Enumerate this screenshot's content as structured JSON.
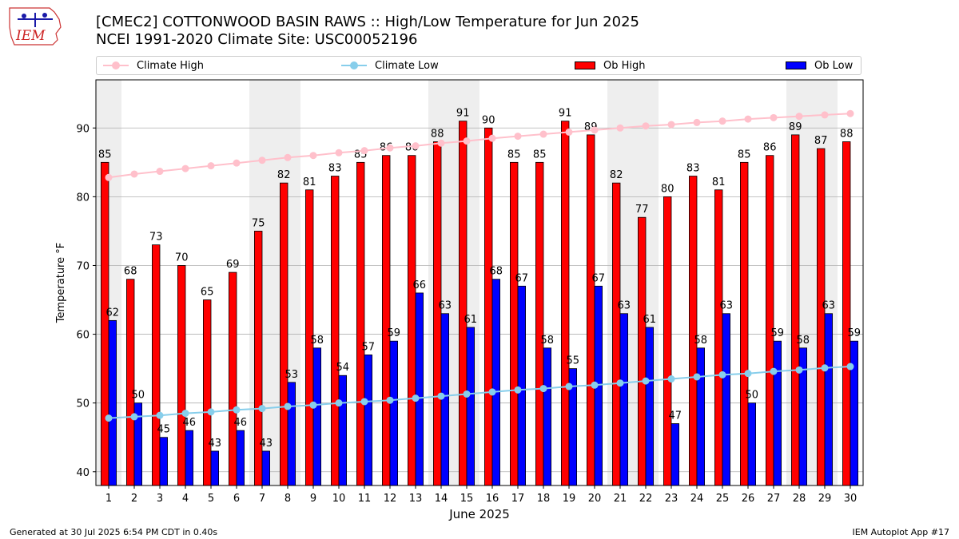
{
  "header": {
    "title_line1": "[CMEC2] COTTONWOOD BASIN RAWS :: High/Low Temperature for Jun 2025",
    "title_line2": "NCEI 1991-2020 Climate Site: USC00052196",
    "logo_text": "IEM"
  },
  "legend": {
    "climate_high": "Climate High",
    "climate_low": "Climate Low",
    "ob_high": "Ob High",
    "ob_low": "Ob Low"
  },
  "footer": {
    "generated": "Generated at 30 Jul 2025 6:54 PM CDT in 0.40s",
    "app": "IEM Autoplot App #17"
  },
  "colors": {
    "ob_high": "#ff0000",
    "ob_low": "#0000ff",
    "climate_high": "#ffc0cb",
    "climate_low": "#87ceeb",
    "weekend_shade": "#eeeeee",
    "grid": "#b0b0b0"
  },
  "chart_data": {
    "type": "bar",
    "title": "[CMEC2] COTTONWOOD BASIN RAWS :: High/Low Temperature for Jun 2025",
    "subtitle": "NCEI 1991-2020 Climate Site: USC00052196",
    "xlabel": "June 2025",
    "ylabel": "Temperature °F",
    "ylim": [
      38,
      97
    ],
    "yticks": [
      40,
      50,
      60,
      70,
      80,
      90
    ],
    "grid": "horizontal",
    "legend_position": "top",
    "categories": [
      "1",
      "2",
      "3",
      "4",
      "5",
      "6",
      "7",
      "8",
      "9",
      "10",
      "11",
      "12",
      "13",
      "14",
      "15",
      "16",
      "17",
      "18",
      "19",
      "20",
      "21",
      "22",
      "23",
      "24",
      "25",
      "26",
      "27",
      "28",
      "29",
      "30"
    ],
    "shaded_days": [
      1,
      7,
      8,
      14,
      15,
      21,
      22,
      28,
      29
    ],
    "series": [
      {
        "name": "Ob High",
        "kind": "bar",
        "values": [
          85,
          68,
          73,
          70,
          65,
          69,
          75,
          82,
          81,
          83,
          85,
          86,
          86,
          88,
          91,
          90,
          85,
          85,
          91,
          89,
          82,
          77,
          80,
          83,
          81,
          85,
          86,
          89,
          87,
          88
        ]
      },
      {
        "name": "Ob Low",
        "kind": "bar",
        "values": [
          62,
          50,
          45,
          46,
          43,
          46,
          43,
          53,
          58,
          54,
          57,
          59,
          66,
          63,
          61,
          68,
          67,
          58,
          55,
          67,
          63,
          61,
          47,
          58,
          63,
          50,
          59,
          58,
          63,
          59
        ]
      },
      {
        "name": "Climate High",
        "kind": "line",
        "values": [
          82.8,
          83.3,
          83.7,
          84.1,
          84.5,
          84.9,
          85.3,
          85.7,
          86.0,
          86.4,
          86.7,
          87.1,
          87.4,
          87.8,
          88.1,
          88.5,
          88.8,
          89.1,
          89.4,
          89.7,
          90.0,
          90.3,
          90.5,
          90.8,
          91.0,
          91.3,
          91.5,
          91.7,
          91.9,
          92.1
        ]
      },
      {
        "name": "Climate Low",
        "kind": "line",
        "values": [
          47.8,
          48.0,
          48.2,
          48.5,
          48.7,
          49.0,
          49.2,
          49.5,
          49.7,
          50.0,
          50.2,
          50.4,
          50.7,
          51.0,
          51.3,
          51.6,
          51.9,
          52.1,
          52.4,
          52.6,
          52.9,
          53.2,
          53.5,
          53.8,
          54.1,
          54.3,
          54.6,
          54.8,
          55.1,
          55.3
        ]
      }
    ]
  }
}
